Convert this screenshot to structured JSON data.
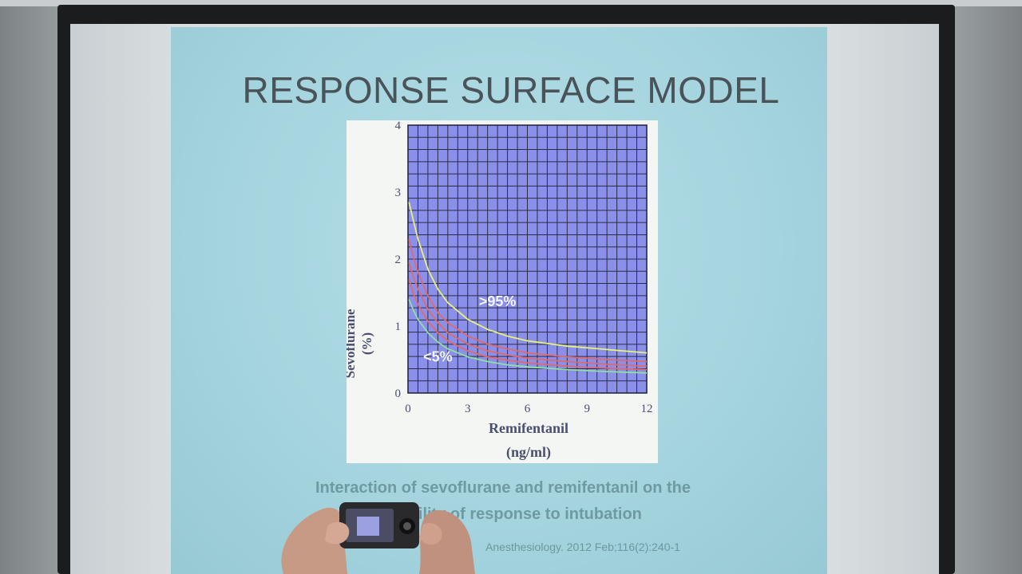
{
  "slide": {
    "title": "RESPONSE SURFACE MODEL",
    "caption_line1": "Interaction of sevoflurane and remifentanil on the",
    "caption_line2": "probability of response to intubation",
    "citation": "Anesthesiology. 2012 Feb;116(2):240-1"
  },
  "chart_data": {
    "type": "line",
    "title": "",
    "xlabel": "Remifentanil",
    "xlabel_unit": "(ng/ml)",
    "ylabel": "Sevoflurane",
    "ylabel_unit": "(%)",
    "xlim": [
      0,
      12
    ],
    "ylim": [
      0,
      4
    ],
    "x_ticks": [
      "0",
      "3",
      "6",
      "9",
      "12"
    ],
    "y_ticks": [
      "0",
      "1",
      "2",
      "3",
      "4"
    ],
    "grid": true,
    "annotations": [
      ">95%",
      "<5%"
    ],
    "colors": {
      "plot_bg": "#8a8fea",
      "grid": "#2a2c45",
      "yellow": "#e6f07a",
      "red": "#e06a6a",
      "green": "#8fe0a0"
    },
    "x": [
      0.05,
      0.25,
      0.5,
      1,
      1.5,
      2,
      3,
      4,
      5,
      6,
      8,
      10,
      12
    ],
    "series": [
      {
        "values": [
          2.85,
          2.6,
          2.3,
          1.85,
          1.55,
          1.35,
          1.1,
          0.95,
          0.85,
          0.78,
          0.7,
          0.65,
          0.6
        ]
      },
      {
        "values": [
          2.3,
          2.05,
          1.8,
          1.45,
          1.2,
          1.05,
          0.85,
          0.73,
          0.66,
          0.6,
          0.54,
          0.5,
          0.47
        ]
      },
      {
        "values": [
          1.95,
          1.75,
          1.55,
          1.25,
          1.05,
          0.9,
          0.73,
          0.63,
          0.57,
          0.52,
          0.47,
          0.43,
          0.4
        ]
      },
      {
        "values": [
          1.7,
          1.5,
          1.32,
          1.07,
          0.9,
          0.78,
          0.63,
          0.54,
          0.49,
          0.45,
          0.4,
          0.37,
          0.35
        ]
      },
      {
        "values": [
          1.4,
          1.25,
          1.1,
          0.9,
          0.76,
          0.66,
          0.54,
          0.47,
          0.42,
          0.39,
          0.35,
          0.32,
          0.3
        ]
      }
    ]
  }
}
